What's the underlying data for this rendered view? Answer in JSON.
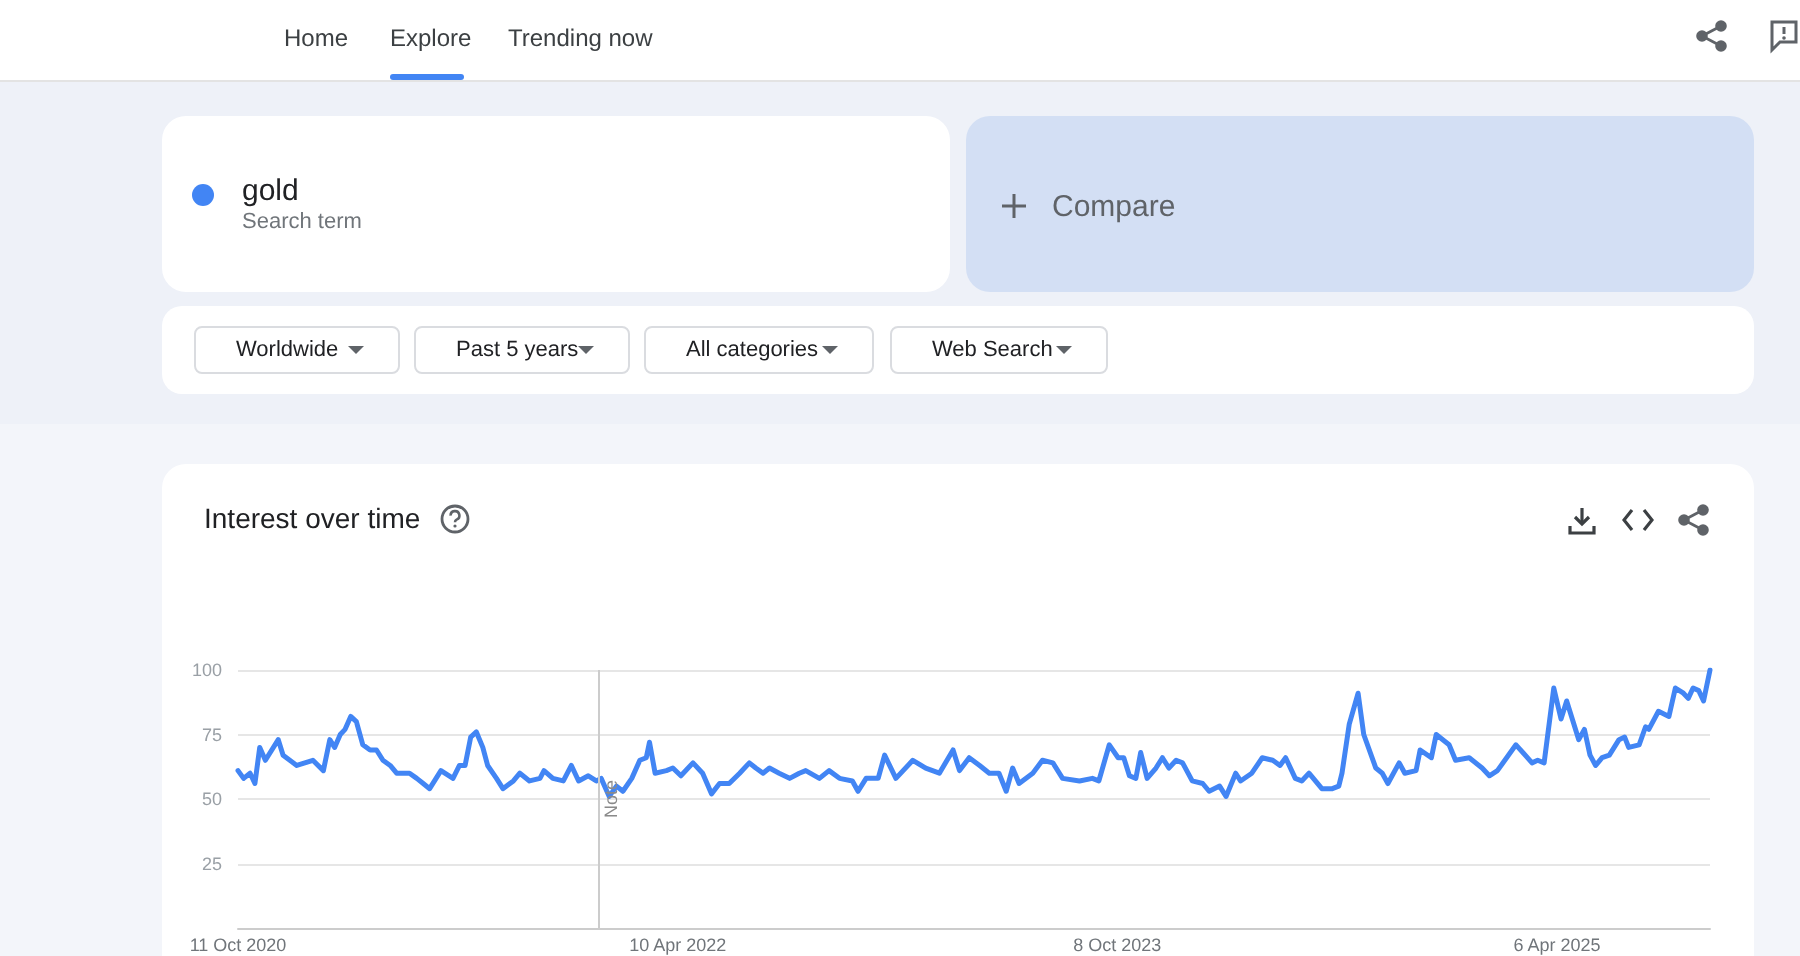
{
  "chart_data": {
    "type": "line",
    "title": "Interest over time",
    "annotations": [
      "Home",
      "Explore",
      "Trending now",
      "Search term",
      "Compare",
      "Worldwide",
      "Past 5 years",
      "All categories",
      "Web Search"
    ],
    "xlim": [
      "2020-10-11",
      "2025-10-13"
    ],
    "xticks": [
      {
        "value": "2020-10-11",
        "label": "11 Oct 2020"
      },
      {
        "value": "2022-04-10",
        "label": "10 Apr 2022"
      },
      {
        "value": "2023-10-08",
        "label": "8 Oct 2023"
      },
      {
        "value": "2025-04-06",
        "label": "6 Apr 2025"
      }
    ],
    "ylim": [
      0,
      100
    ],
    "yticks": [
      25,
      50,
      75,
      100
    ],
    "grid": "y",
    "marker": "none",
    "line_style": "solid",
    "ref_lines": [
      {
        "axis": "x",
        "value": "2022-01-01",
        "label": "Note",
        "color": "#cccccc"
      }
    ],
    "series": [
      {
        "name": "gold",
        "color": "#4285f4",
        "x": [
          "2020-10-11",
          "2020-10-18",
          "2020-10-26",
          "2020-11-01",
          "2020-11-07",
          "2020-11-14",
          "2020-11-30",
          "2020-12-06",
          "2020-12-23",
          "2021-01-12",
          "2021-01-25",
          "2021-02-02",
          "2021-02-08",
          "2021-02-15",
          "2021-02-21",
          "2021-02-28",
          "2021-03-07",
          "2021-03-15",
          "2021-03-24",
          "2021-04-01",
          "2021-04-09",
          "2021-04-18",
          "2021-04-26",
          "2021-05-12",
          "2021-05-21",
          "2021-05-29",
          "2021-06-06",
          "2021-06-20",
          "2021-07-05",
          "2021-07-13",
          "2021-07-20",
          "2021-07-27",
          "2021-08-03",
          "2021-08-11",
          "2021-08-17",
          "2021-08-28",
          "2021-09-05",
          "2021-09-18",
          "2021-09-26",
          "2021-10-08",
          "2021-10-21",
          "2021-10-26",
          "2021-11-06",
          "2021-11-19",
          "2021-11-29",
          "2021-12-08",
          "2021-12-20",
          "2021-12-30",
          "2022-01-05",
          "2022-01-15",
          "2022-01-24",
          "2022-02-01",
          "2022-02-12",
          "2022-02-22",
          "2022-03-02",
          "2022-03-06",
          "2022-03-13",
          "2022-03-27",
          "2022-04-04",
          "2022-04-14",
          "2022-04-29",
          "2022-05-11",
          "2022-05-22",
          "2022-06-01",
          "2022-06-13",
          "2022-06-26",
          "2022-07-08",
          "2022-07-16",
          "2022-07-25",
          "2022-08-02",
          "2022-08-14",
          "2022-08-27",
          "2022-09-08",
          "2022-09-16",
          "2022-10-03",
          "2022-10-15",
          "2022-10-28",
          "2022-11-13",
          "2022-11-20",
          "2022-11-30",
          "2022-12-15",
          "2022-12-23",
          "2023-01-06",
          "2023-01-27",
          "2023-02-12",
          "2023-03-01",
          "2023-03-18",
          "2023-03-26",
          "2023-04-07",
          "2023-04-20",
          "2023-05-02",
          "2023-05-14",
          "2023-05-23",
          "2023-05-31",
          "2023-06-08",
          "2023-06-25",
          "2023-07-07",
          "2023-07-20",
          "2023-08-01",
          "2023-08-22",
          "2023-09-07",
          "2023-09-15",
          "2023-09-28",
          "2023-10-09",
          "2023-10-16",
          "2023-10-23",
          "2023-10-31",
          "2023-11-06",
          "2023-11-14",
          "2023-11-25",
          "2023-12-03",
          "2023-12-11",
          "2023-12-20",
          "2023-12-28",
          "2024-01-09",
          "2024-01-22",
          "2024-01-30",
          "2024-02-12",
          "2024-02-20",
          "2024-03-03",
          "2024-03-09",
          "2024-03-23",
          "2024-04-05",
          "2024-04-18",
          "2024-04-27",
          "2024-05-04",
          "2024-05-16",
          "2024-05-24",
          "2024-06-02",
          "2024-06-18",
          "2024-07-01",
          "2024-07-09",
          "2024-07-13",
          "2024-07-22",
          "2024-08-02",
          "2024-08-09",
          "2024-08-24",
          "2024-09-01",
          "2024-09-08",
          "2024-09-22",
          "2024-09-29",
          "2024-10-13",
          "2024-10-18",
          "2024-11-01",
          "2024-11-07",
          "2024-11-23",
          "2024-12-01",
          "2024-12-18",
          "2025-01-03",
          "2025-01-12",
          "2025-01-22",
          "2025-02-14",
          "2025-03-06",
          "2025-03-13",
          "2025-03-21",
          "2025-04-02",
          "2025-04-11",
          "2025-04-18",
          "2025-05-03",
          "2025-05-10",
          "2025-05-17",
          "2025-05-24",
          "2025-06-01",
          "2025-06-10",
          "2025-06-22",
          "2025-06-29",
          "2025-07-04",
          "2025-07-17",
          "2025-07-25",
          "2025-07-29",
          "2025-08-10",
          "2025-08-23",
          "2025-08-31",
          "2025-09-10",
          "2025-09-16",
          "2025-09-22",
          "2025-09-29",
          "2025-10-05",
          "2025-10-13"
        ],
        "values": [
          61,
          58,
          60,
          56,
          70,
          65,
          73,
          67,
          63,
          65,
          61,
          73,
          70,
          75,
          77,
          82,
          80,
          71,
          69,
          69,
          65,
          63,
          60,
          60,
          58,
          56,
          54,
          61,
          58,
          63,
          63,
          74,
          76,
          70,
          63,
          58,
          54,
          57,
          60,
          57,
          58,
          61,
          58,
          57,
          63,
          57,
          59,
          57,
          58,
          51,
          55,
          53,
          58,
          65,
          66,
          72,
          60,
          61,
          62,
          59,
          64,
          60,
          52,
          56,
          56,
          60,
          64,
          62,
          60,
          62,
          60,
          58,
          60,
          61,
          58,
          61,
          58,
          57,
          53,
          58,
          58,
          67,
          58,
          65,
          62,
          60,
          69,
          61,
          66,
          63,
          60,
          60,
          53,
          62,
          56,
          60,
          65,
          64,
          58,
          57,
          58,
          57,
          71,
          66,
          66,
          59,
          58,
          68,
          58,
          62,
          66,
          62,
          65,
          64,
          57,
          56,
          53,
          55,
          51,
          60,
          57,
          60,
          66,
          65,
          63,
          66,
          58,
          57,
          60,
          54,
          54,
          55,
          60,
          79,
          91,
          75,
          62,
          60,
          56,
          64,
          60,
          61,
          69,
          66,
          75,
          71,
          65,
          66,
          62,
          59,
          61,
          71,
          64,
          65,
          64,
          93,
          81,
          88,
          73,
          77,
          67,
          63,
          66,
          67,
          73,
          74,
          70,
          71,
          78,
          77,
          84,
          82,
          93,
          91,
          89,
          93,
          92,
          88,
          100
        ]
      }
    ]
  }
}
